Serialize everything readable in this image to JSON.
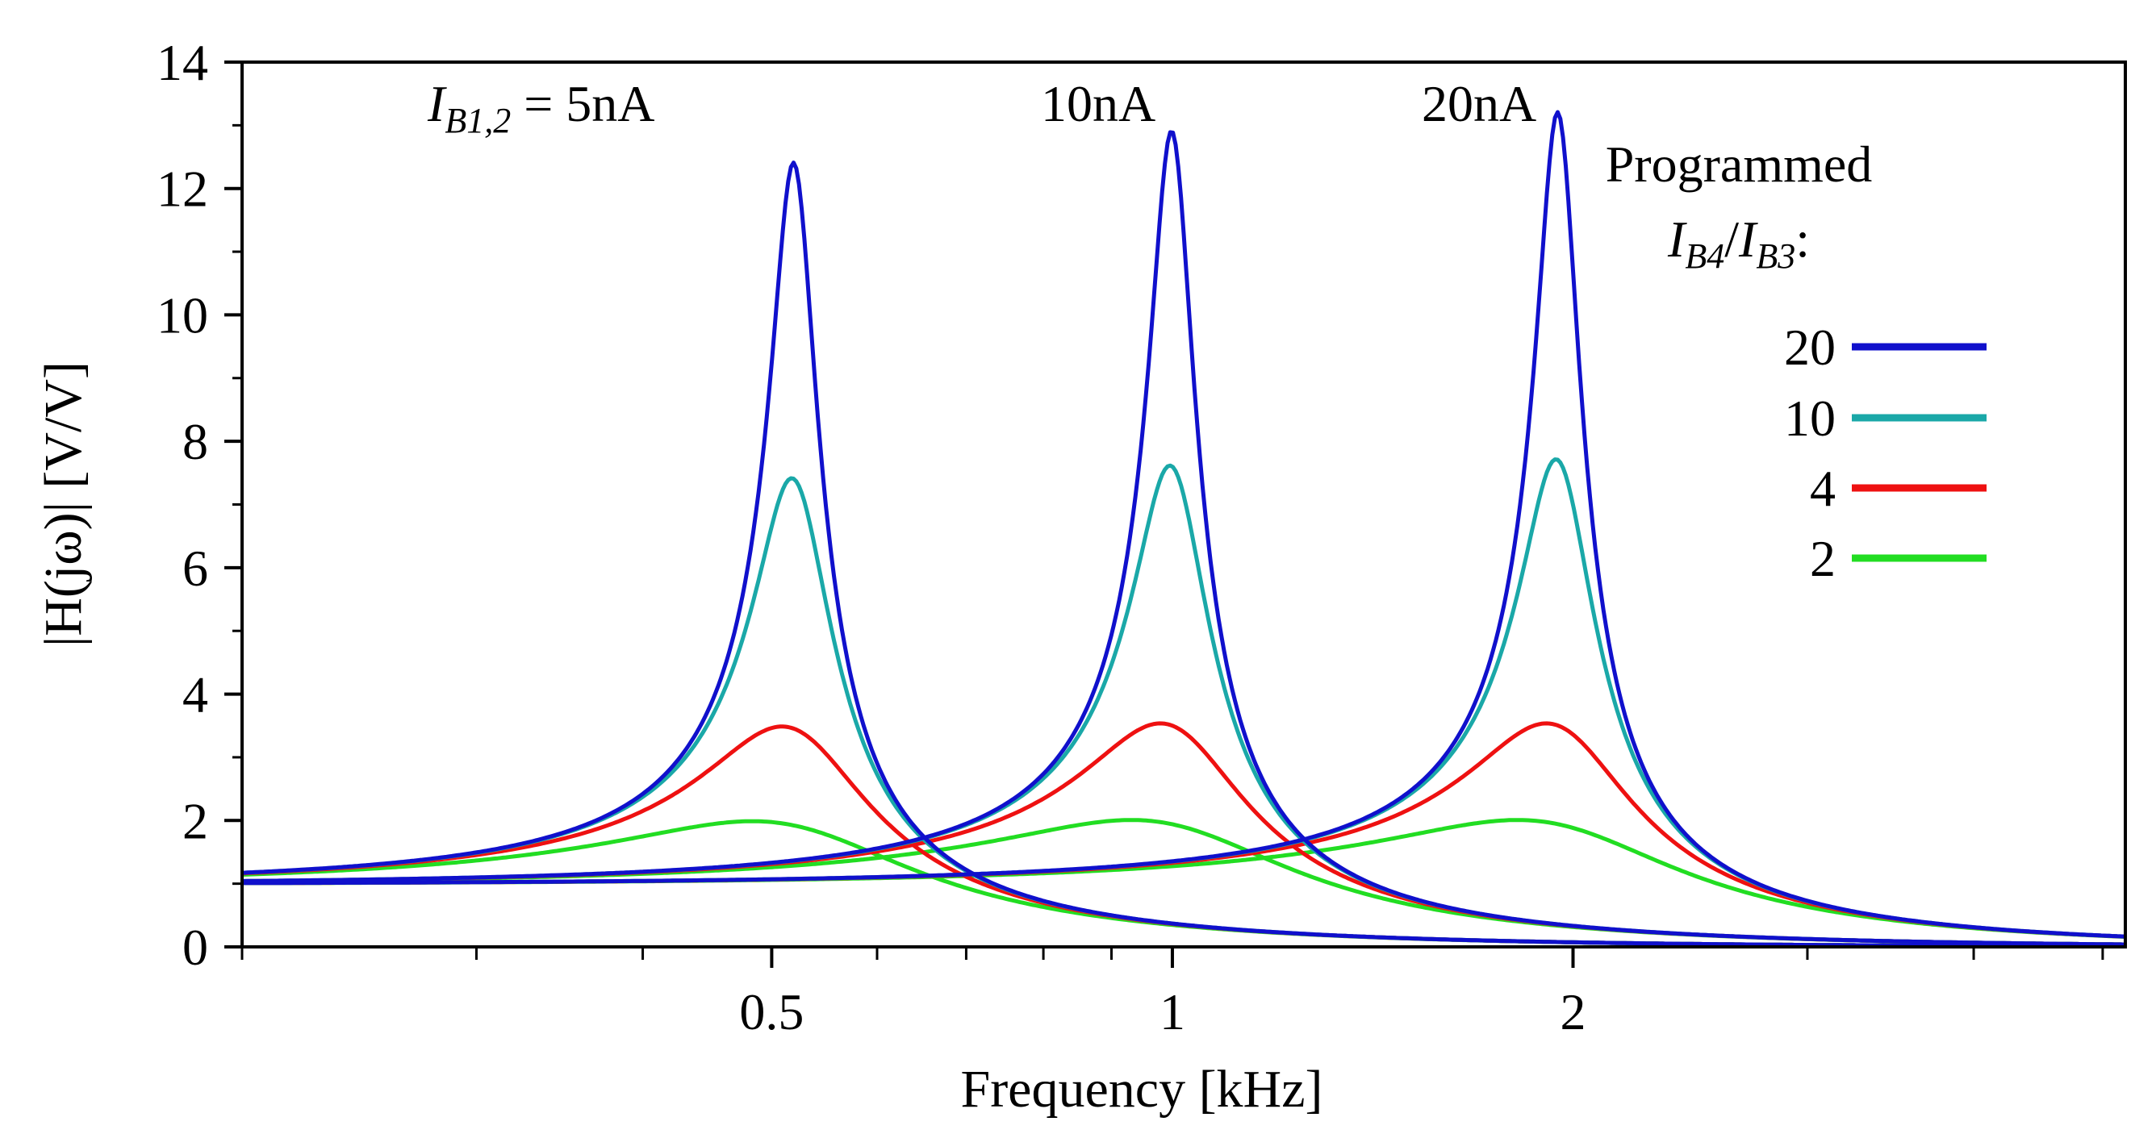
{
  "chart_data": {
    "type": "line",
    "x_scale": "log",
    "xlabel": "Frequency [kHz]",
    "ylabel": "|H(jω)|  [V/V]",
    "xlim": [
      0.2,
      5.2
    ],
    "ylim": [
      0,
      14
    ],
    "x_ticks": [
      0.5,
      1,
      2
    ],
    "x_tick_labels": [
      "0.5",
      "1",
      "2"
    ],
    "x_minor_ticks": [
      0.2,
      0.3,
      0.4,
      0.6,
      0.7,
      0.8,
      0.9,
      3,
      4,
      5
    ],
    "y_ticks": [
      0,
      2,
      4,
      6,
      8,
      10,
      12,
      14
    ],
    "y_tick_labels": [
      "0",
      "2",
      "4",
      "6",
      "8",
      "10",
      "12",
      "14"
    ],
    "grid": false,
    "legend": {
      "title_line1": "Programmed",
      "title_line2": {
        "i1": "I",
        "s1": "B4",
        "sep": "/",
        "i2": "I",
        "s2": "B3",
        "end": ":"
      },
      "position": "right",
      "entries": [
        {
          "label": "20",
          "color": "#1010cc"
        },
        {
          "label": "10",
          "color": "#1aa8a8"
        },
        {
          "label": "4",
          "color": "#ee1111"
        },
        {
          "label": "2",
          "color": "#22dd22"
        }
      ]
    },
    "annotations": {
      "group1": {
        "i": "I",
        "sub": "B1,2",
        "rest": " = 5nA"
      },
      "group2": "10nA",
      "group3": "20nA"
    },
    "groups": [
      {
        "bias": "5nA",
        "center_freq_khz": 0.52
      },
      {
        "bias": "10nA",
        "center_freq_khz": 1.0
      },
      {
        "bias": "20nA",
        "center_freq_khz": 1.95
      }
    ],
    "series": [
      {
        "name": "20",
        "color": "#1010cc",
        "peak_values": [
          12.4,
          12.9,
          13.2
        ]
      },
      {
        "name": "10",
        "color": "#1aa8a8",
        "peak_values": [
          7.4,
          7.6,
          7.7
        ]
      },
      {
        "name": "4",
        "color": "#ee1111",
        "peak_values": [
          3.45,
          3.5,
          3.5
        ]
      },
      {
        "name": "2",
        "color": "#22dd22",
        "peak_values": [
          1.92,
          1.94,
          1.94
        ]
      }
    ],
    "low_frequency_gain": 1.0
  }
}
